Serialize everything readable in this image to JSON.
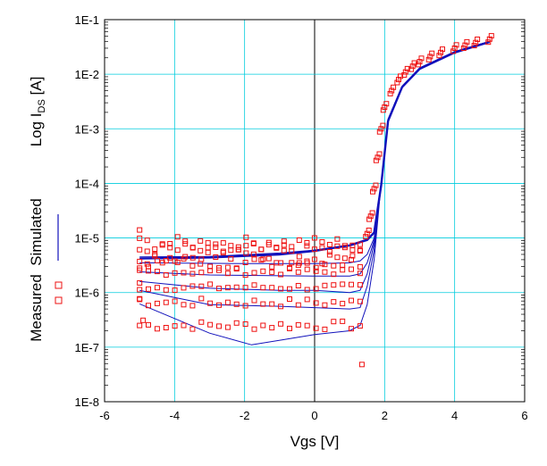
{
  "chart_data": {
    "type": "scatter",
    "title": "",
    "xlabel": "Vgs [V]",
    "ylabel_main": "Log I",
    "ylabel_sub": "DS",
    "ylabel_unit": " [A]",
    "legend": {
      "placement": "left-side-vertical",
      "measured_label": "Measured",
      "simulated_label": "Simulated"
    },
    "xlim": [
      -6,
      6
    ],
    "ylim_log10": [
      -8,
      -1
    ],
    "yscale": "log",
    "grid": true,
    "x_ticks": [
      {
        "v": -6,
        "label": "-6"
      },
      {
        "v": -4,
        "label": "-4"
      },
      {
        "v": -2,
        "label": "-2"
      },
      {
        "v": 0,
        "label": "0"
      },
      {
        "v": 2,
        "label": "2"
      },
      {
        "v": 4,
        "label": "4"
      },
      {
        "v": 6,
        "label": "6"
      }
    ],
    "y_ticks": [
      {
        "e": -1,
        "label": "1E-1"
      },
      {
        "e": -2,
        "label": "1E-2"
      },
      {
        "e": -3,
        "label": "1E-3"
      },
      {
        "e": -4,
        "label": "1E-4"
      },
      {
        "e": -5,
        "label": "1E-5"
      },
      {
        "e": -6,
        "label": "1E-6"
      },
      {
        "e": -7,
        "label": "1E-7"
      },
      {
        "e": -8,
        "label": "1E-8"
      }
    ],
    "colors": {
      "measured": "#ee1111",
      "simulated": "#1111bb",
      "grid": "#00ccdd",
      "axis": "#000000"
    },
    "series": [
      {
        "name": "Simulated",
        "kind": "line",
        "points": [
          [
            -5,
            6.2e-07
          ],
          [
            -3,
            1.8e-07
          ],
          [
            -1.8,
            1.1e-07
          ],
          [
            0,
            1.7e-07
          ],
          [
            1,
            2e-07
          ],
          [
            1.3,
            2.5e-07
          ],
          [
            1.5,
            6e-07
          ],
          [
            1.7,
            4e-06
          ],
          [
            1.9,
            0.0001
          ],
          [
            2.1,
            0.0015
          ],
          [
            2.5,
            0.006
          ],
          [
            3,
            0.013
          ],
          [
            4,
            0.026
          ],
          [
            5,
            0.04
          ]
        ]
      },
      {
        "name": "Simulated",
        "kind": "line",
        "points": [
          [
            -5,
            1.1e-06
          ],
          [
            -3,
            6e-07
          ],
          [
            -1,
            5.6e-07
          ],
          [
            0,
            5.3e-07
          ],
          [
            1,
            5e-07
          ],
          [
            1.3,
            5.3e-07
          ],
          [
            1.5,
            1.3e-06
          ],
          [
            1.7,
            6e-06
          ],
          [
            1.9,
            0.0001
          ],
          [
            2.1,
            0.0015
          ],
          [
            2.5,
            0.006
          ],
          [
            3,
            0.013
          ],
          [
            4,
            0.026
          ],
          [
            5,
            0.04
          ]
        ]
      },
      {
        "name": "Simulated",
        "kind": "line",
        "points": [
          [
            -5,
            1.6e-06
          ],
          [
            -3,
            1.2e-06
          ],
          [
            -1,
            1.1e-06
          ],
          [
            0,
            1.1e-06
          ],
          [
            1,
            1e-06
          ],
          [
            1.3,
            1.1e-06
          ],
          [
            1.5,
            2.2e-06
          ],
          [
            1.7,
            8e-06
          ],
          [
            1.9,
            0.0001
          ],
          [
            2.1,
            0.0015
          ],
          [
            2.5,
            0.006
          ],
          [
            3,
            0.013
          ],
          [
            4,
            0.026
          ],
          [
            5,
            0.04
          ]
        ]
      },
      {
        "name": "Simulated",
        "kind": "line",
        "points": [
          [
            -5,
            2.4e-06
          ],
          [
            -3,
            2.1e-06
          ],
          [
            0,
            2e-06
          ],
          [
            1,
            2e-06
          ],
          [
            1.3,
            2.2e-06
          ],
          [
            1.5,
            3.5e-06
          ],
          [
            1.7,
            9e-06
          ],
          [
            1.9,
            0.0001
          ],
          [
            2.1,
            0.0015
          ],
          [
            2.5,
            0.006
          ],
          [
            3,
            0.013
          ],
          [
            4,
            0.026
          ],
          [
            5,
            0.04
          ]
        ]
      },
      {
        "name": "Simulated",
        "kind": "line",
        "points": [
          [
            -5,
            3.5e-06
          ],
          [
            -2,
            3.4e-06
          ],
          [
            0,
            3.4e-06
          ],
          [
            1,
            3.5e-06
          ],
          [
            1.3,
            3.8e-06
          ],
          [
            1.5,
            5e-06
          ],
          [
            1.7,
            1e-05
          ],
          [
            1.9,
            0.0001
          ],
          [
            2.1,
            0.0015
          ],
          [
            2.5,
            0.006
          ],
          [
            3,
            0.013
          ],
          [
            4,
            0.026
          ],
          [
            5,
            0.04
          ]
        ]
      },
      {
        "name": "Simulated",
        "kind": "line",
        "points": [
          [
            -5,
            4.5e-06
          ],
          [
            -3,
            4.6e-06
          ],
          [
            -1,
            5.3e-06
          ],
          [
            0,
            6e-06
          ],
          [
            1,
            7.5e-06
          ],
          [
            1.5,
            9.5e-06
          ],
          [
            1.7,
            1.3e-05
          ],
          [
            1.9,
            0.0001
          ],
          [
            2.1,
            0.0015
          ],
          [
            2.5,
            0.006
          ],
          [
            3,
            0.013
          ],
          [
            4,
            0.026
          ],
          [
            5,
            0.04
          ]
        ]
      },
      {
        "name": "Simulated",
        "kind": "line",
        "points": [
          [
            -5,
            4.2e-06
          ],
          [
            -3,
            4.4e-06
          ],
          [
            -1,
            5e-06
          ],
          [
            0,
            5.8e-06
          ],
          [
            1,
            7.3e-06
          ],
          [
            1.5,
            9.2e-06
          ],
          [
            1.7,
            1.25e-05
          ],
          [
            1.9,
            9e-05
          ],
          [
            2.1,
            0.0014
          ],
          [
            2.5,
            0.0058
          ],
          [
            3,
            0.0125
          ],
          [
            4,
            0.025
          ],
          [
            5,
            0.039
          ]
        ]
      }
    ],
    "measured": [
      {
        "name": "Measured",
        "kind": "markers",
        "base": 2.5e-07,
        "jitter": 0.08,
        "n": 26,
        "start": -5,
        "end": 1.3
      },
      {
        "name": "Measured",
        "kind": "markers",
        "base": 6.5e-07,
        "jitter": 0.08,
        "n": 26,
        "start": -5,
        "end": 1.3
      },
      {
        "name": "Measured",
        "kind": "markers",
        "base": 1.25e-06,
        "jitter": 0.06,
        "n": 26,
        "start": -5,
        "end": 1.3
      },
      {
        "name": "Measured",
        "kind": "markers",
        "base": 2.4e-06,
        "jitter": 0.06,
        "n": 26,
        "start": -5,
        "end": 1.3
      },
      {
        "name": "Measured",
        "kind": "markers",
        "base": 3.5e-06,
        "jitter": 0.1,
        "n": 26,
        "start": -5,
        "end": 1.3
      },
      {
        "name": "Measured",
        "kind": "markers",
        "base": 4.6e-06,
        "jitter": 0.14,
        "n": 30,
        "start": -5,
        "end": 1.3
      },
      {
        "name": "Measured",
        "kind": "markers",
        "base": 6e-06,
        "jitter": 0.14,
        "n": 30,
        "start": -5,
        "end": 1.3
      },
      {
        "name": "Measured",
        "kind": "markers",
        "base": 8e-06,
        "jitter": 0.12,
        "n": 30,
        "start": -5,
        "end": 1.3
      }
    ],
    "measured_rise": [
      [
        1.5,
        1.2e-05
      ],
      [
        1.6,
        2.5e-05
      ],
      [
        1.7,
        8e-05
      ],
      [
        1.8,
        0.0003
      ],
      [
        1.9,
        0.001
      ],
      [
        2.0,
        0.0025
      ],
      [
        2.2,
        0.005
      ],
      [
        2.4,
        0.008
      ],
      [
        2.6,
        0.011
      ],
      [
        2.8,
        0.014
      ],
      [
        3.0,
        0.017
      ],
      [
        3.3,
        0.021
      ],
      [
        3.6,
        0.025
      ],
      [
        4.0,
        0.03
      ],
      [
        4.3,
        0.034
      ],
      [
        4.6,
        0.038
      ],
      [
        5.0,
        0.044
      ]
    ],
    "measured_outliers": [
      [
        -5,
        1.4e-05
      ],
      [
        -5,
        7.5e-07
      ],
      [
        -4.9,
        3.1e-07
      ],
      [
        -5,
        1.5e-06
      ],
      [
        1.35,
        4.8e-08
      ]
    ]
  }
}
